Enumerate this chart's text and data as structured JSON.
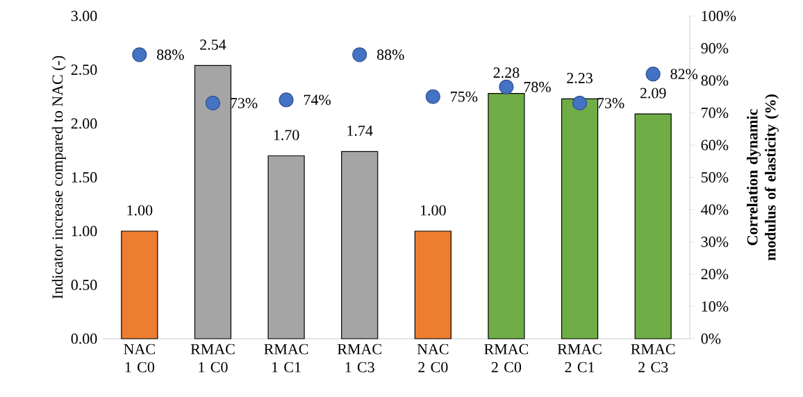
{
  "chart_data": {
    "type": "bar",
    "ylabel": "Indicator increase compared to NAC (-)",
    "y2label": "Correlation dynamic modulus of elasticity (%)",
    "categories": [
      "NAC 1 C0",
      "RMAC 1 C0",
      "RMAC 1 C1",
      "RMAC 1 C3",
      "NAC 2 C0",
      "RMAC 2 C0",
      "RMAC 2 C1",
      "RMAC 2 C3"
    ],
    "series": [
      {
        "type": "bar",
        "colors": [
          "#ed7d31",
          "#a5a5a5",
          "#a5a5a5",
          "#a5a5a5",
          "#ed7d31",
          "#70ad47",
          "#70ad47",
          "#70ad47"
        ],
        "values": [
          1.0,
          2.54,
          1.7,
          1.74,
          1.0,
          2.28,
          2.23,
          2.09
        ],
        "value_labels": [
          "1.00",
          "2.54",
          "1.70",
          "1.74",
          "1.00",
          "2.28",
          "2.23",
          "2.09"
        ]
      },
      {
        "type": "scatter",
        "axis": "y2",
        "color": "#4472c4",
        "marker": "circle",
        "values": [
          88,
          73,
          74,
          88,
          75,
          78,
          73,
          82
        ],
        "value_labels": [
          "88%",
          "73%",
          "74%",
          "88%",
          "75%",
          "78%",
          "73%",
          "82%"
        ]
      }
    ],
    "ylim": [
      0,
      3
    ],
    "yticks": [
      {
        "value": 0,
        "label": "0.00"
      },
      {
        "value": 0.5,
        "label": "0.50"
      },
      {
        "value": 1,
        "label": "1.00"
      },
      {
        "value": 1.5,
        "label": "1.50"
      },
      {
        "value": 2,
        "label": "2.00"
      },
      {
        "value": 2.5,
        "label": "2.50"
      },
      {
        "value": 3,
        "label": "3.00"
      }
    ],
    "y2lim": [
      0,
      100
    ],
    "y2ticks": [
      {
        "value": 0,
        "label": "0%"
      },
      {
        "value": 10,
        "label": "10%"
      },
      {
        "value": 20,
        "label": "20%"
      },
      {
        "value": 30,
        "label": "30%"
      },
      {
        "value": 40,
        "label": "40%"
      },
      {
        "value": 50,
        "label": "50%"
      },
      {
        "value": 60,
        "label": "60%"
      },
      {
        "value": 70,
        "label": "70%"
      },
      {
        "value": 80,
        "label": "80%"
      },
      {
        "value": 90,
        "label": "90%"
      },
      {
        "value": 100,
        "label": "100%"
      }
    ],
    "grid": false
  }
}
